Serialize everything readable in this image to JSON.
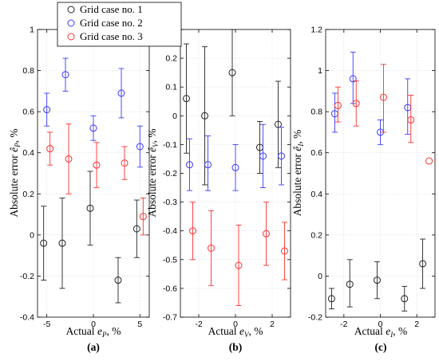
{
  "chart_data": [
    {
      "type": "scatter",
      "panel_label": "(a)",
      "ylabel": "Absolute error",
      "ylabel_symbol": "ê",
      "ylabel_sub": "P",
      "ylabel_unit": ", %",
      "xlabel": "Actual",
      "xlabel_symbol": "e",
      "xlabel_sub": "P",
      "xlabel_unit": ",  %",
      "xlim": [
        -6,
        6
      ],
      "ylim": [
        -0.4,
        1
      ],
      "xticks": [
        -5,
        0,
        5
      ],
      "xticklabels": [
        "-5",
        "0",
        "5"
      ],
      "yticks": [
        -0.4,
        -0.2,
        0,
        0.2,
        0.4,
        0.6,
        0.8,
        1
      ],
      "yticklabels": [
        "-0.4",
        "-0.2",
        "0",
        "0.2",
        "0.4",
        "0.6",
        "0.8",
        "1"
      ],
      "grid": true,
      "series": [
        {
          "name": "Grid case no. 1",
          "color": "#222222",
          "points": [
            {
              "x": -5,
              "y": -0.04,
              "lo": -0.22,
              "hi": 0.14
            },
            {
              "x": -3,
              "y": -0.04,
              "lo": -0.26,
              "hi": 0.18
            },
            {
              "x": 0,
              "y": 0.13,
              "lo": -0.05,
              "hi": 0.31
            },
            {
              "x": 3,
              "y": -0.22,
              "lo": -0.33,
              "hi": -0.11
            },
            {
              "x": 5,
              "y": 0.03,
              "lo": -0.11,
              "hi": 0.17
            }
          ]
        },
        {
          "name": "Grid case no. 2",
          "color": "#3a3aff",
          "points": [
            {
              "x": -5,
              "y": 0.61,
              "lo": 0.53,
              "hi": 0.69
            },
            {
              "x": -3,
              "y": 0.78,
              "lo": 0.7,
              "hi": 0.86
            },
            {
              "x": 0,
              "y": 0.52,
              "lo": 0.46,
              "hi": 0.58
            },
            {
              "x": 3,
              "y": 0.69,
              "lo": 0.57,
              "hi": 0.81
            },
            {
              "x": 5,
              "y": 0.43,
              "lo": 0.33,
              "hi": 0.53
            }
          ]
        },
        {
          "name": "Grid case no. 3",
          "color": "#ff3030",
          "points": [
            {
              "x": -5,
              "y": 0.42,
              "lo": 0.34,
              "hi": 0.5
            },
            {
              "x": -3,
              "y": 0.37,
              "lo": 0.2,
              "hi": 0.54
            },
            {
              "x": 0,
              "y": 0.34,
              "lo": 0.23,
              "hi": 0.45
            },
            {
              "x": 3,
              "y": 0.35,
              "lo": 0.27,
              "hi": 0.43
            },
            {
              "x": 5,
              "y": 0.09,
              "lo": 0.0,
              "hi": 0.18
            }
          ]
        }
      ]
    },
    {
      "type": "scatter",
      "panel_label": "(b)",
      "ylabel": "Absolute error",
      "ylabel_symbol": "ê",
      "ylabel_sub": "V",
      "ylabel_unit": ", %",
      "xlabel": "Actual",
      "xlabel_symbol": "e",
      "xlabel_sub": "V",
      "xlabel_unit": ",  %",
      "xlim": [
        -3,
        3
      ],
      "ylim": [
        -0.7,
        0.3
      ],
      "xticks": [
        -2,
        0,
        2
      ],
      "xticklabels": [
        "-2",
        "0",
        "2"
      ],
      "yticks": [
        -0.7,
        -0.6,
        -0.5,
        -0.4,
        -0.3,
        -0.2,
        -0.1,
        0,
        0.1,
        0.2,
        0.3
      ],
      "yticklabels": [
        "-0.7",
        "-0.6",
        "-0.5",
        "-0.4",
        "-0.3",
        "-0.2",
        "-0.1",
        "0",
        "0.1",
        "0.2",
        "0.3"
      ],
      "grid": true,
      "series": [
        {
          "name": "Grid case no. 1",
          "color": "#222222",
          "points": [
            {
              "x": -2.5,
              "y": 0.06,
              "lo": -0.13,
              "hi": 0.25
            },
            {
              "x": -1.5,
              "y": 0.0,
              "lo": -0.24,
              "hi": 0.24
            },
            {
              "x": 0,
              "y": 0.15,
              "lo": 0.0,
              "hi": 0.3
            },
            {
              "x": 1.5,
              "y": -0.11,
              "lo": -0.2,
              "hi": -0.02
            },
            {
              "x": 2.5,
              "y": -0.03,
              "lo": -0.18,
              "hi": 0.12
            }
          ]
        },
        {
          "name": "Grid case no. 2",
          "color": "#3a3aff",
          "points": [
            {
              "x": -2.5,
              "y": -0.17,
              "lo": -0.26,
              "hi": -0.08
            },
            {
              "x": -1.5,
              "y": -0.17,
              "lo": -0.26,
              "hi": -0.07
            },
            {
              "x": 0,
              "y": -0.18,
              "lo": -0.26,
              "hi": -0.1
            },
            {
              "x": 1.5,
              "y": -0.14,
              "lo": -0.25,
              "hi": -0.03
            },
            {
              "x": 2.5,
              "y": -0.14,
              "lo": -0.24,
              "hi": -0.04
            }
          ]
        },
        {
          "name": "Grid case no. 3",
          "color": "#ff3030",
          "points": [
            {
              "x": -2.5,
              "y": -0.4,
              "lo": -0.5,
              "hi": -0.3
            },
            {
              "x": -1.5,
              "y": -0.46,
              "lo": -0.59,
              "hi": -0.33
            },
            {
              "x": 0,
              "y": -0.52,
              "lo": -0.66,
              "hi": -0.38
            },
            {
              "x": 1.5,
              "y": -0.41,
              "lo": -0.52,
              "hi": -0.3
            },
            {
              "x": 2.5,
              "y": -0.47,
              "lo": -0.57,
              "hi": -0.37
            }
          ]
        }
      ]
    },
    {
      "type": "scatter",
      "panel_label": "(c)",
      "ylabel": "Absolute error",
      "ylabel_symbol": "ê",
      "ylabel_sub": "I",
      "ylabel_unit": ", %",
      "xlabel": "Actual",
      "xlabel_symbol": "e",
      "xlabel_sub": "I",
      "xlabel_unit": ",  %",
      "xlim": [
        -3,
        3
      ],
      "ylim": [
        -0.2,
        1.2
      ],
      "xticks": [
        -2,
        0,
        2
      ],
      "xticklabels": [
        "-2",
        "0",
        "2"
      ],
      "yticks": [
        -0.2,
        0,
        0.2,
        0.4,
        0.6,
        0.8,
        1,
        1.2
      ],
      "yticklabels": [
        "-0.2",
        "0",
        "0.2",
        "0.4",
        "0.6",
        "0.8",
        "1",
        "1.2"
      ],
      "grid": true,
      "series": [
        {
          "name": "Grid case no. 1",
          "color": "#222222",
          "points": [
            {
              "x": -2.5,
              "y": -0.11,
              "lo": -0.16,
              "hi": -0.06
            },
            {
              "x": -1.5,
              "y": -0.04,
              "lo": -0.15,
              "hi": 0.08
            },
            {
              "x": 0,
              "y": -0.02,
              "lo": -0.11,
              "hi": 0.07
            },
            {
              "x": 1.5,
              "y": -0.11,
              "lo": -0.17,
              "hi": -0.05
            },
            {
              "x": 2.5,
              "y": 0.06,
              "lo": -0.06,
              "hi": 0.18
            }
          ]
        },
        {
          "name": "Grid case no. 2",
          "color": "#3a3aff",
          "points": [
            {
              "x": -2.5,
              "y": 0.79,
              "lo": 0.7,
              "hi": 0.89
            },
            {
              "x": -1.5,
              "y": 0.96,
              "lo": 0.84,
              "hi": 1.09
            },
            {
              "x": 0,
              "y": 0.7,
              "lo": 0.64,
              "hi": 0.76
            },
            {
              "x": 1.5,
              "y": 0.82,
              "lo": 0.69,
              "hi": 0.96
            },
            {
              "x": 2.5,
              "y": null,
              "lo": null,
              "hi": null
            }
          ]
        },
        {
          "name": "Grid case no. 3",
          "color": "#ff3030",
          "points": [
            {
              "x": -2.5,
              "y": 0.83,
              "lo": 0.75,
              "hi": 0.92
            },
            {
              "x": -1.5,
              "y": 0.84,
              "lo": 0.73,
              "hi": 0.95
            },
            {
              "x": 0,
              "y": 0.87,
              "lo": 0.7,
              "hi": 1.03
            },
            {
              "x": 1.5,
              "y": 0.76,
              "lo": 0.65,
              "hi": 0.88
            },
            {
              "x": 2.5,
              "y": 0.56,
              "lo": 0.56,
              "hi": 0.56
            }
          ]
        }
      ]
    }
  ],
  "legend": {
    "placement": "top-left of panel (a)",
    "entries": [
      "Grid case no. 1",
      "Grid case no. 2",
      "Grid case no. 3"
    ]
  }
}
